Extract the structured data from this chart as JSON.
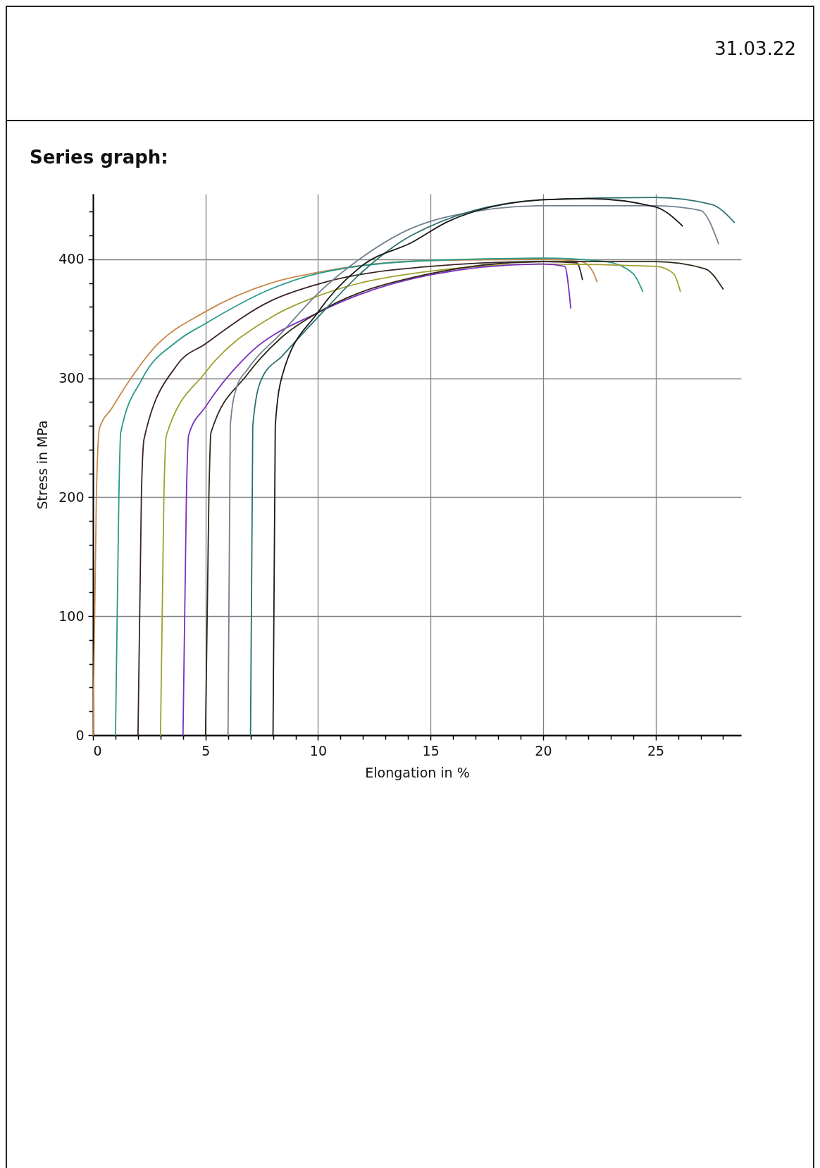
{
  "chart_data": {
    "type": "line",
    "title": "Series graph:",
    "annotations": [
      "31.03.22"
    ],
    "xlabel": "Elongation in %",
    "ylabel": "Stress in MPa",
    "xlim": [
      0,
      28.8
    ],
    "ylim": [
      0,
      455
    ],
    "xticks": [
      0,
      {
        "value": 1,
        "label": null
      },
      {
        "value": 2,
        "label": null
      },
      {
        "value": 3,
        "label": null
      },
      {
        "value": 4,
        "label": null
      },
      5,
      {
        "value": 6,
        "label": null
      },
      {
        "value": 7,
        "label": null
      },
      {
        "value": 8,
        "label": null
      },
      {
        "value": 9,
        "label": null
      },
      10,
      {
        "value": 11,
        "label": null
      },
      {
        "value": 12,
        "label": null
      },
      {
        "value": 13,
        "label": null
      },
      {
        "value": 14,
        "label": null
      },
      15,
      {
        "value": 16,
        "label": null
      },
      {
        "value": 17,
        "label": null
      },
      {
        "value": 18,
        "label": null
      },
      {
        "value": 19,
        "label": null
      },
      20,
      {
        "value": 21,
        "label": null
      },
      {
        "value": 22,
        "label": null
      },
      {
        "value": 23,
        "label": null
      },
      {
        "value": 24,
        "label": null
      },
      25,
      {
        "value": 26,
        "label": null
      },
      {
        "value": 27,
        "label": null
      },
      {
        "value": 28,
        "label": null
      }
    ],
    "yticks": [
      0,
      {
        "value": 20,
        "label": null
      },
      {
        "value": 40,
        "label": null
      },
      {
        "value": 60,
        "label": null
      },
      {
        "value": 80,
        "label": null
      },
      100,
      {
        "value": 120,
        "label": null
      },
      {
        "value": 140,
        "label": null
      },
      {
        "value": 160,
        "label": null
      },
      {
        "value": 180,
        "label": null
      },
      200,
      {
        "value": 220,
        "label": null
      },
      {
        "value": 240,
        "label": null
      },
      {
        "value": 260,
        "label": null
      },
      {
        "value": 280,
        "label": null
      },
      300,
      {
        "value": 320,
        "label": null
      },
      {
        "value": 340,
        "label": null
      },
      {
        "value": 360,
        "label": null
      },
      {
        "value": 380,
        "label": null
      },
      400,
      {
        "value": 420,
        "label": null
      },
      {
        "value": 440,
        "label": null
      }
    ],
    "grid": true,
    "legend": false,
    "marker": "none",
    "line_style": "solid",
    "series": [
      {
        "color": "#c8884a",
        "x": [
          0,
          0.15,
          0.29,
          0.81,
          1.65,
          2.69,
          5,
          7.9,
          9.98,
          15,
          20,
          21.7,
          22.2,
          22.4
        ],
        "values": [
          0,
          200,
          258,
          274,
          299,
          325,
          356,
          380,
          389,
          399,
          400,
          398,
          390,
          381
        ]
      },
      {
        "color": "#2a9a8a",
        "x": [
          1,
          1.15,
          1.23,
          2.17,
          3.73,
          5,
          7.9,
          9.98,
          15,
          20,
          22.8,
          24,
          24.43
        ],
        "values": [
          0,
          200,
          254,
          299,
          331,
          346,
          375,
          388,
          399,
          401,
          398,
          388,
          373
        ]
      },
      {
        "color": "#3a2424",
        "x": [
          2,
          2.15,
          2.27,
          3.73,
          5,
          7.9,
          9.98,
          15,
          20,
          21.5,
          21.75
        ],
        "values": [
          0,
          200,
          249,
          311,
          329,
          365,
          379,
          394,
          398,
          397,
          383
        ]
      },
      {
        "color": "#a0a030",
        "x": [
          3,
          3.15,
          3.26,
          5,
          7.9,
          9.98,
          15,
          20,
          25,
          25.8,
          26.1
        ],
        "values": [
          0,
          200,
          252,
          305,
          351,
          369,
          390,
          396,
          394,
          388,
          373
        ]
      },
      {
        "color": "#7a30c0",
        "x": [
          4,
          4.15,
          4.25,
          5,
          6.85,
          9.98,
          15,
          20,
          20.96,
          21.23
        ],
        "values": [
          0,
          200,
          252,
          276,
          319,
          355,
          387,
          396,
          394,
          359
        ]
      },
      {
        "color": "#302818",
        "x": [
          5,
          5.15,
          5.24,
          6.85,
          8.42,
          9.98,
          15,
          20,
          25,
          27.2,
          28
        ],
        "values": [
          0,
          200,
          254,
          303,
          335,
          355,
          388,
          398,
          398,
          392,
          375
        ]
      },
      {
        "color": "#708090",
        "x": [
          6,
          6.1,
          6.39,
          6.85,
          8.42,
          9.98,
          12.06,
          14.15,
          15.8,
          20,
          25,
          27,
          27.8
        ],
        "values": [
          0,
          260,
          293,
          307,
          339,
          371,
          403,
          426,
          436,
          445,
          445,
          441,
          413
        ]
      },
      {
        "color": "#2a7070",
        "x": [
          7,
          7.1,
          7.48,
          8.42,
          9.98,
          12.06,
          14.15,
          20,
          25,
          27.5,
          28.5
        ],
        "values": [
          0,
          260,
          299,
          319,
          351,
          391,
          420,
          450,
          452,
          446,
          431
        ]
      },
      {
        "color": "#1a1a1a",
        "x": [
          8,
          8.1,
          8.42,
          9.98,
          12.06,
          14.15,
          15.8,
          20,
          22,
          25,
          26.2
        ],
        "values": [
          0,
          260,
          303,
          355,
          396,
          414,
          432,
          450,
          451,
          444,
          428
        ]
      }
    ]
  }
}
